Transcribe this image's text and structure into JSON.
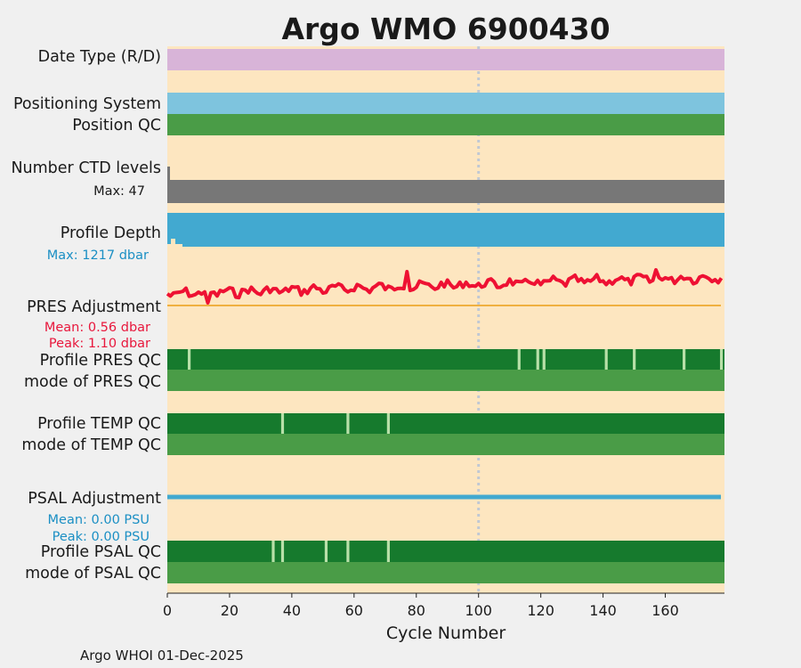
{
  "chart_data": {
    "type": "timeline",
    "title": "Argo WMO 6900430",
    "xlabel": "Cycle Number",
    "xlim": [
      0,
      179
    ],
    "xticks": [
      0,
      20,
      40,
      60,
      80,
      100,
      120,
      140,
      160
    ],
    "footer": "Argo WHOI 01-Dec-2025",
    "reference_cycle": 100,
    "rows": {
      "date_type": {
        "label": "Date Type (R/D)",
        "color": "#d8b4d8"
      },
      "positioning_system": {
        "label": "Positioning System",
        "color": "#7ec4de"
      },
      "position_qc": {
        "label": "Position QC",
        "color": "#4a9c47"
      },
      "ctd_levels": {
        "label": "Number CTD levels",
        "max_label": "Max: 47",
        "max": 47,
        "color": "#777777"
      },
      "profile_depth": {
        "label": "Profile Depth",
        "max_label": "Max: 1217 dbar",
        "max": 1217,
        "unit": "dbar",
        "color": "#42a9d0"
      },
      "pres_adjustment": {
        "label": "PRES Adjustment",
        "mean_label": "Mean: 0.56 dbar",
        "peak_label": "Peak: 1.10 dbar",
        "mean": 0.56,
        "peak": 1.1,
        "color": "#ee1133",
        "zero_color": "#f0b040"
      },
      "profile_pres_qc": {
        "label": "Profile PRES QC",
        "color": "#167a2d",
        "gap_color": "#b8e0a8",
        "gap_cycles": [
          7,
          113,
          119,
          121,
          141,
          150,
          166,
          178
        ]
      },
      "mode_pres_qc": {
        "label": "mode of PRES QC",
        "color": "#4a9c47"
      },
      "profile_temp_qc": {
        "label": "Profile TEMP QC",
        "color": "#167a2d",
        "gap_color": "#b8e0a8",
        "gap_cycles": [
          37,
          58,
          71
        ]
      },
      "mode_temp_qc": {
        "label": "mode of TEMP QC",
        "color": "#4a9c47"
      },
      "psal_adjustment": {
        "label": "PSAL Adjustment",
        "mean_label": "Mean: 0.00 PSU",
        "peak_label": "Peak: 0.00 PSU",
        "mean": 0.0,
        "peak": 0.0,
        "color": "#42a9d0"
      },
      "profile_psal_qc": {
        "label": "Profile PSAL QC",
        "color": "#167a2d",
        "gap_color": "#b8e0a8",
        "gap_cycles": [
          34,
          37,
          51,
          58,
          71
        ]
      },
      "mode_psal_qc": {
        "label": "mode of PSAL QC",
        "color": "#4a9c47"
      }
    },
    "colors": {
      "title": "#0d88b8",
      "panel_bg": "#fde6c0",
      "page_bg": "#f0f0f0",
      "mean_label": "#e8173c",
      "psal_label": "#1b8fc4"
    }
  }
}
